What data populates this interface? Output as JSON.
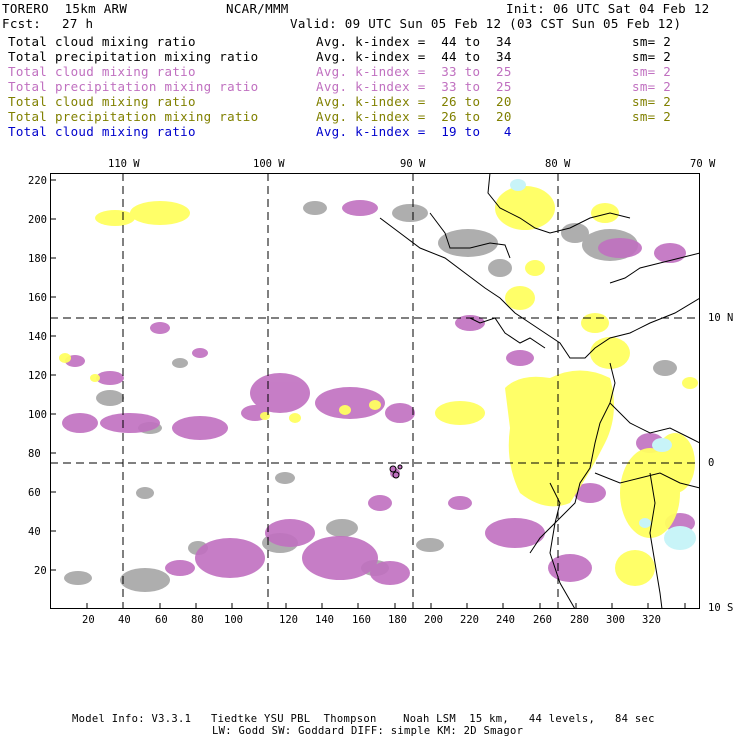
{
  "header": {
    "model": "TORERO  15km ARW",
    "org": "NCAR/MMM",
    "init": "Init: 06 UTC Sat 04 Feb 12",
    "fcst_label": "Fcst:",
    "fcst_value": "27 h",
    "valid": "Valid: 09 UTC Sun 05 Feb 12 (03 CST Sun 05 Feb 12)"
  },
  "legend": [
    {
      "field": "Total cloud mixing ratio",
      "kindex": "Avg. k-index =  44 to  34",
      "sm": "sm= 2",
      "color": "#000000"
    },
    {
      "field": "Total precipitation mixing ratio",
      "kindex": "Avg. k-index =  44 to  34",
      "sm": "sm= 2",
      "color": "#000000"
    },
    {
      "field": "Total cloud mixing ratio",
      "kindex": "Avg. k-index =  33 to  25",
      "sm": "sm= 2",
      "color": "#c070c0"
    },
    {
      "field": "Total precipitation mixing ratio",
      "kindex": "Avg. k-index =  33 to  25",
      "sm": "sm= 2",
      "color": "#c070c0"
    },
    {
      "field": "Total cloud mixing ratio",
      "kindex": "Avg. k-index =  26 to  20",
      "sm": "sm= 2",
      "color": "#808000"
    },
    {
      "field": "Total precipitation mixing ratio",
      "kindex": "Avg. k-index =  26 to  20",
      "sm": "sm= 2",
      "color": "#808000"
    },
    {
      "field": "Total cloud mixing ratio",
      "kindex": "Avg. k-index =  19 to   4",
      "sm": "",
      "color": "#0000cc"
    }
  ],
  "map": {
    "lon_labels": [
      "110 W",
      "100 W",
      "90 W",
      "80 W",
      "70 W"
    ],
    "lat_labels": [
      "10 N",
      "0",
      "10 S"
    ],
    "x_ticks": [
      "20",
      "40",
      "60",
      "80",
      "100",
      "120",
      "140",
      "160",
      "180",
      "200",
      "220",
      "240",
      "260",
      "280",
      "300",
      "320"
    ],
    "y_ticks": [
      "20",
      "40",
      "60",
      "80",
      "100",
      "120",
      "140",
      "160",
      "180",
      "200",
      "220"
    ],
    "colors": {
      "gray": "#a0a0a0",
      "purple": "#c070c0",
      "yellow": "#ffff60",
      "cyan": "#c8f4f8",
      "land": "#000000"
    }
  },
  "footer": {
    "line1": "Model Info: V3.3.1   Tiedtke YSU PBL  Thompson    Noah LSM  15 km,   44 levels,   84 sec",
    "line2": "LW: Godd SW: Goddard DIFF: simple KM: 2D Smagor"
  }
}
